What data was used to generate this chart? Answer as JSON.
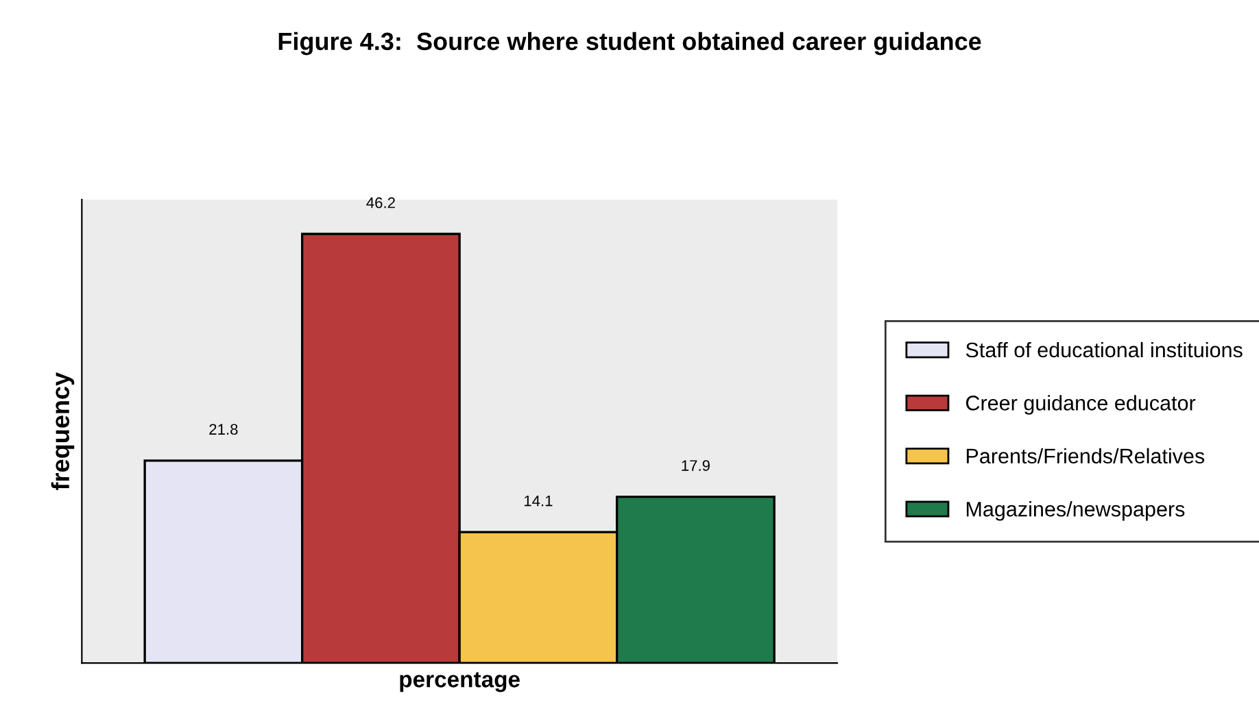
{
  "chart_data": {
    "type": "bar",
    "title": "Figure 4.3:  Source where student obtained career guidance",
    "xlabel": "percentage",
    "ylabel": "frequency",
    "categories": [
      null
    ],
    "series": [
      {
        "name": "Staff of educational instituions",
        "color": "#e4e4f4",
        "values": [
          21.8
        ]
      },
      {
        "name": "Creer guidance educator",
        "color": "#b83a3a",
        "values": [
          46.2
        ]
      },
      {
        "name": "Parents/Friends/Relatives",
        "color": "#f4c44c",
        "values": [
          14.1
        ]
      },
      {
        "name": "Magazines/newspapers",
        "color": "#1f7a4c",
        "values": [
          17.9
        ]
      }
    ],
    "data_labels": true,
    "tick_labels": false,
    "legend": "right",
    "grid": false
  }
}
